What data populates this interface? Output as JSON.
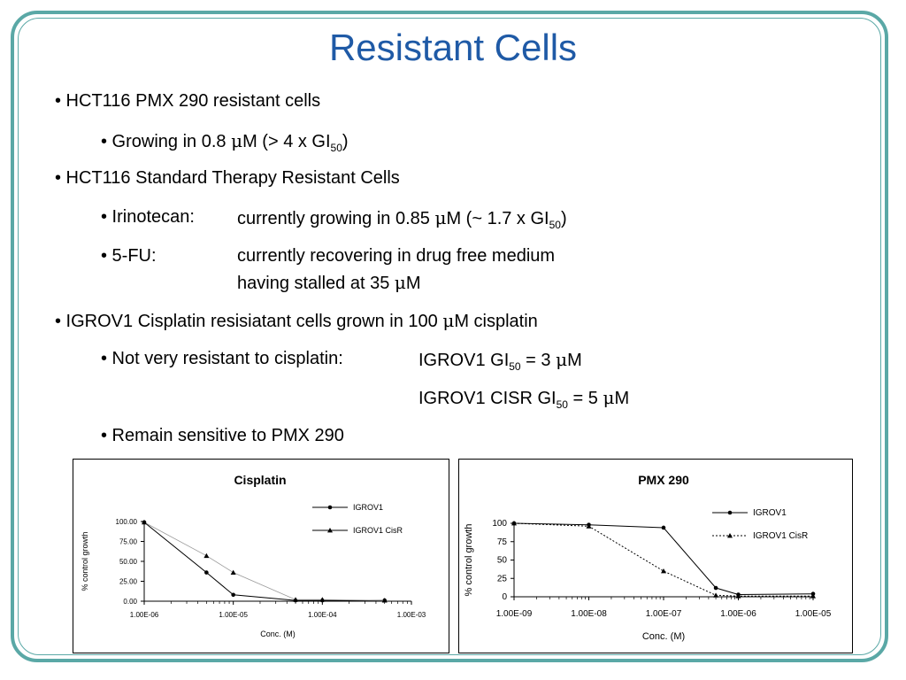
{
  "title": "Resistant Cells",
  "bullets": {
    "b1": "• HCT116 PMX 290 resistant cells",
    "b1a_pre": "• Growing in 0.8 ",
    "b1a_mu": "μ",
    "b1a_post": "M (> 4 x GI",
    "b1a_sub": "50",
    "b1a_end": ")",
    "b2": "• HCT116 Standard Therapy Resistant Cells",
    "b2a_label": "• Irinotecan:",
    "b2a_pre": "currently growing in 0.85 ",
    "b2a_mu": "μ",
    "b2a_post": "M (~ 1.7 x GI",
    "b2a_sub": "50",
    "b2a_end": ")",
    "b2b_label": "• 5-FU:",
    "b2b_text1": "currently recovering in drug free medium",
    "b2b_text2_pre": "having stalled at 35 ",
    "b2b_mu": "μ",
    "b2b_text2_post": "M",
    "b3_pre": "• IGROV1 Cisplatin resisiatant cells grown in 100 ",
    "b3_mu": "μ",
    "b3_post": "M cisplatin",
    "b3a_label": "• Not very resistant to cisplatin:",
    "gi1_pre": "IGROV1 GI",
    "gi1_sub": "50",
    "gi1_mid": " = 3 ",
    "gi1_mu": "μ",
    "gi1_end": "M",
    "gi2_pre": "IGROV1 CISR GI",
    "gi2_sub": "50",
    "gi2_mid": " = 5 ",
    "gi2_mu": "μ",
    "gi2_end": "M",
    "b3b": "• Remain sensitive to PMX 290"
  },
  "colors": {
    "title": "#1f5aa6",
    "frame": "#5aa8a6"
  },
  "chart_data": [
    {
      "type": "line",
      "title": "Cisplatin",
      "xlabel": "Conc. (M)",
      "ylabel": "% control growth",
      "x_scale": "log",
      "xlim": [
        1e-06,
        0.001
      ],
      "ylim": [
        0,
        100
      ],
      "x_tick_labels": [
        "1.00E-06",
        "1.00E-05",
        "1.00E-04",
        "1.00E-03"
      ],
      "y_tick_labels": [
        "0.00",
        "25.00",
        "50.00",
        "75.00",
        "100.00"
      ],
      "legend_position": "top-right",
      "series": [
        {
          "name": "IGROV1",
          "style": "solid",
          "marker": "circle",
          "color": "#000000",
          "x": [
            1e-06,
            5e-06,
            1e-05,
            5e-05,
            0.0001,
            0.0005
          ],
          "y": [
            99,
            36,
            8,
            1,
            1,
            1
          ]
        },
        {
          "name": "IGROV1 CisR",
          "style": "dotted",
          "marker": "triangle",
          "color": "#000000",
          "x": [
            1e-06,
            5e-06,
            1e-05,
            5e-05,
            0.0001,
            0.0005
          ],
          "y": [
            99,
            57,
            36,
            2,
            2,
            1
          ]
        }
      ]
    },
    {
      "type": "line",
      "title": "PMX 290",
      "xlabel": "Conc. (M)",
      "ylabel": "% control growth",
      "x_scale": "log",
      "xlim": [
        1e-09,
        1e-05
      ],
      "ylim": [
        0,
        100
      ],
      "x_tick_labels": [
        "1.00E-09",
        "1.00E-08",
        "1.00E-07",
        "1.00E-06",
        "1.00E-05"
      ],
      "y_tick_labels": [
        "0",
        "25",
        "50",
        "75",
        "100"
      ],
      "legend_position": "top-right",
      "series": [
        {
          "name": "IGROV1",
          "style": "solid",
          "marker": "circle",
          "color": "#000000",
          "x": [
            1e-09,
            1e-08,
            1e-07,
            5e-07,
            1e-06,
            1e-05
          ],
          "y": [
            100,
            98,
            94,
            12,
            3,
            4
          ]
        },
        {
          "name": "IGROV1 CisR",
          "style": "dotted",
          "marker": "triangle",
          "color": "#000000",
          "x": [
            1e-09,
            1e-08,
            1e-07,
            5e-07,
            1e-06,
            1e-05
          ],
          "y": [
            100,
            96,
            35,
            2,
            1,
            1
          ]
        }
      ]
    }
  ]
}
